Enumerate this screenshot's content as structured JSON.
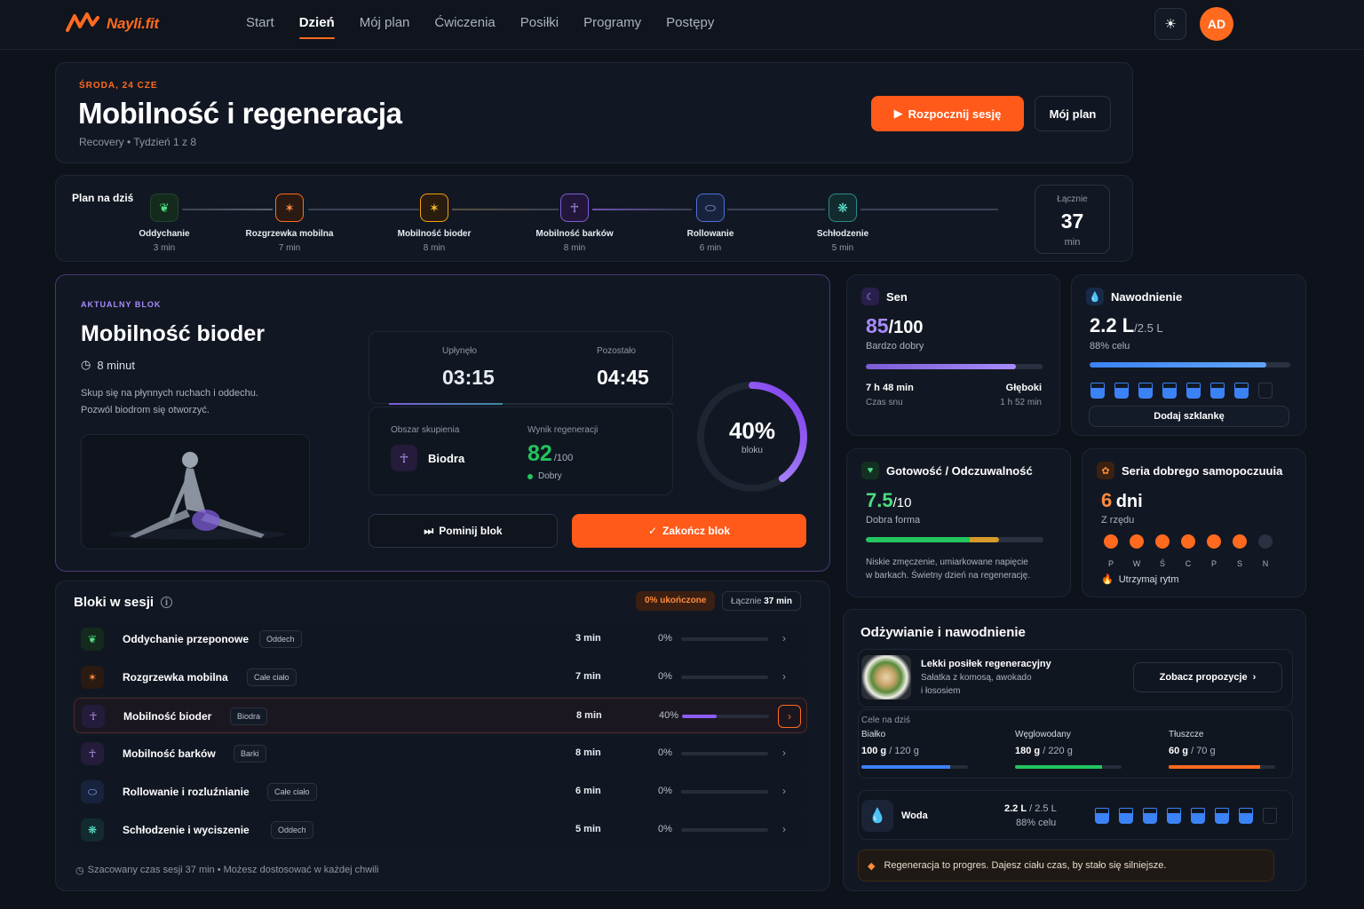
{
  "app": {
    "brand_main": "Nayli",
    "brand_ext": ".fit",
    "avatar_initials": "AD",
    "theme_icon": "sun-icon"
  },
  "nav": [
    "Start",
    "Dzień",
    "Mój plan",
    "Ćwiczenia",
    "Posiłki",
    "Programy",
    "Postępy"
  ],
  "hero": {
    "date": "ŚRODA, 24 CZE",
    "title": "Mobilność i regeneracja",
    "subtitle": "Recovery • Tydzień 1 z 8",
    "start_label": "Rozpocznij sesję",
    "plan_label": "Mój plan"
  },
  "plan": {
    "label": "Plan na dziś",
    "steps": [
      {
        "name": "Oddychanie",
        "time": "3 min",
        "icon": "leaf-icon"
      },
      {
        "name": "Rozgrzewka mobilna",
        "time": "7 min",
        "icon": "stretch-icon"
      },
      {
        "name": "Mobilność bioder",
        "time": "8 min",
        "icon": "hip-icon"
      },
      {
        "name": "Mobilność barków",
        "time": "8 min",
        "icon": "shoulder-icon"
      },
      {
        "name": "Rollowanie",
        "time": "6 min",
        "icon": "roller-icon"
      },
      {
        "name": "Schłodzenie",
        "time": "5 min",
        "icon": "cooldown-icon"
      }
    ],
    "total_label": "Łącznie",
    "total_value": "37",
    "total_unit": "min"
  },
  "current": {
    "cap": "AKTUALNY BLOK",
    "title": "Mobilność bioder",
    "duration": "8 minut",
    "desc1": "Skup się na płynnych ruchach i oddechu.",
    "desc2": "Pozwól biodrom się otworzyć.",
    "elapsed_label": "Upłynęło",
    "elapsed": "03:15",
    "remaining_label": "Pozostało",
    "remaining": "04:45",
    "elapsed_fraction": 0.4,
    "focus_label": "Obszar skupienia",
    "focus_value": "Biodra",
    "score_label": "Wynik regeneracji",
    "score": "82",
    "score_max": "/100",
    "score_status": "Dobry",
    "ring_value": "40%",
    "ring_fraction": 0.4,
    "ring_label": "bloku",
    "skip_label": "Pominij blok",
    "finish_label": "Zakończ blok"
  },
  "sleep": {
    "title": "Sen",
    "score": "85",
    "max": "/100",
    "quality": "Bardzo dobry",
    "fraction": 0.85,
    "duration": "7 h 48 min",
    "duration_label": "Czas snu",
    "deep_label": "Głęboki",
    "deep_value": "1 h 52 min"
  },
  "hydration": {
    "title": "Nawodnienie",
    "value": "2.2 L",
    "target": "/2.5 L",
    "percent": "88% celu",
    "fraction": 0.88,
    "glasses_full": 7,
    "glasses_total": 8,
    "add_label": "Dodaj szklankę"
  },
  "readiness": {
    "title": "Gotowość / Odczuwalność",
    "score": "7.5",
    "max": "/10",
    "status": "Dobra forma",
    "fraction": 0.75,
    "note1": "Niskie zmęczenie, umiarkowane napięcie",
    "note2": "w barkach. Świetny dzień na regenerację."
  },
  "streak": {
    "title": "Seria dobrego samopoczuuia",
    "value": "6",
    "unit": "dni",
    "sub": "Z rzędu",
    "days": [
      "P",
      "W",
      "Ś",
      "C",
      "P",
      "S",
      "N"
    ],
    "active": [
      true,
      true,
      true,
      true,
      true,
      true,
      false
    ],
    "footer": "Utrzymaj rytm"
  },
  "blocks": {
    "title": "Bloki w sesji",
    "done_badge": "0% ukończone",
    "total_label": "Łącznie",
    "total_value": "37 min",
    "rows": [
      {
        "name": "Oddychanie przeponowe",
        "tag": "Oddech",
        "mins": "3 min",
        "pct": "0%",
        "progress": 0,
        "icon": "leaf-icon"
      },
      {
        "name": "Rozgrzewka mobilna",
        "tag": "Całe ciało",
        "mins": "7 min",
        "pct": "0%",
        "progress": 0,
        "icon": "stretch-icon"
      },
      {
        "name": "Mobilność bioder",
        "tag": "Biodra",
        "mins": "8 min",
        "pct": "40%",
        "progress": 0.4,
        "icon": "hip-icon"
      },
      {
        "name": "Mobilność barków",
        "tag": "Barki",
        "mins": "8 min",
        "pct": "0%",
        "progress": 0,
        "icon": "shoulder-icon"
      },
      {
        "name": "Rollowanie i rozluźnianie",
        "tag": "Całe ciało",
        "mins": "6 min",
        "pct": "0%",
        "progress": 0,
        "icon": "roller-icon"
      },
      {
        "name": "Schłodzenie i wyciszenie",
        "tag": "Oddech",
        "mins": "5 min",
        "pct": "0%",
        "progress": 0,
        "icon": "cooldown-icon"
      }
    ],
    "footer": "Szacowany czas sesji 37 min • Możesz dostosować w każdej chwili"
  },
  "nutrition": {
    "title": "Odżywianie i nawodnienie",
    "meal_title": "Lekki posiłek regeneracyjny",
    "meal_desc1": "Sałatka z komosą, awokado",
    "meal_desc2": "i łososiem",
    "meal_button": "Zobacz propozycje",
    "goals_label": "Cele na dziś",
    "macros": [
      {
        "name": "Białko",
        "value": "100 g",
        "target": "/ 120 g",
        "fraction": 0.83,
        "color": "#3b82f6"
      },
      {
        "name": "Węglowodany",
        "value": "180 g",
        "target": "/ 220 g",
        "fraction": 0.82,
        "color": "#22c55e"
      },
      {
        "name": "Tłuszcze",
        "value": "60 g",
        "target": "/ 70 g",
        "fraction": 0.86,
        "color": "#ff6a1f"
      }
    ],
    "water_label": "Woda",
    "water_value": "2.2 L",
    "water_target": "/ 2.5 L",
    "water_percent": "88% celu",
    "tip": "Regeneracja to progres. Dajesz ciału czas, by stało się silniejsze."
  }
}
